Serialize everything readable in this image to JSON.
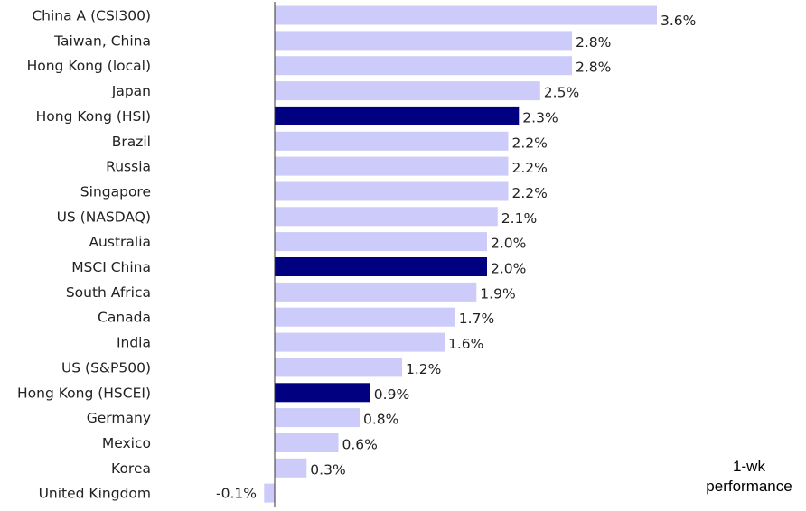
{
  "chart_data": {
    "type": "bar",
    "orientation": "horizontal",
    "categories": [
      "China A (CSI300)",
      "Taiwan, China",
      "Hong Kong (local)",
      "Japan",
      "Hong Kong (HSI)",
      "Brazil",
      "Russia",
      "Singapore",
      "US (NASDAQ)",
      "Australia",
      "MSCI China",
      "South Africa",
      "Canada",
      "India",
      "US (S&P500)",
      "Hong Kong (HSCEI)",
      "Germany",
      "Mexico",
      "Korea",
      "United Kingdom"
    ],
    "values": [
      3.6,
      2.8,
      2.8,
      2.5,
      2.3,
      2.2,
      2.2,
      2.2,
      2.1,
      2.0,
      2.0,
      1.9,
      1.7,
      1.6,
      1.2,
      0.9,
      0.8,
      0.6,
      0.3,
      -0.1
    ],
    "value_labels": [
      "3.6%",
      "2.8%",
      "2.8%",
      "2.5%",
      "2.3%",
      "2.2%",
      "2.2%",
      "2.2%",
      "2.1%",
      "2.0%",
      "2.0%",
      "1.9%",
      "1.7%",
      "1.6%",
      "1.2%",
      "0.9%",
      "0.8%",
      "0.6%",
      "0.3%",
      "-0.1%"
    ],
    "highlighted": [
      "Hong Kong (HSI)",
      "MSCI China",
      "Hong Kong (HSCEI)"
    ],
    "axis_note": [
      "1-wk",
      "performance"
    ],
    "colors": {
      "bar": "#cccbf9",
      "highlight": "#000080",
      "negative_label": "#e8262b",
      "text": "#222222",
      "axis": "#333333"
    },
    "grid": false
  }
}
